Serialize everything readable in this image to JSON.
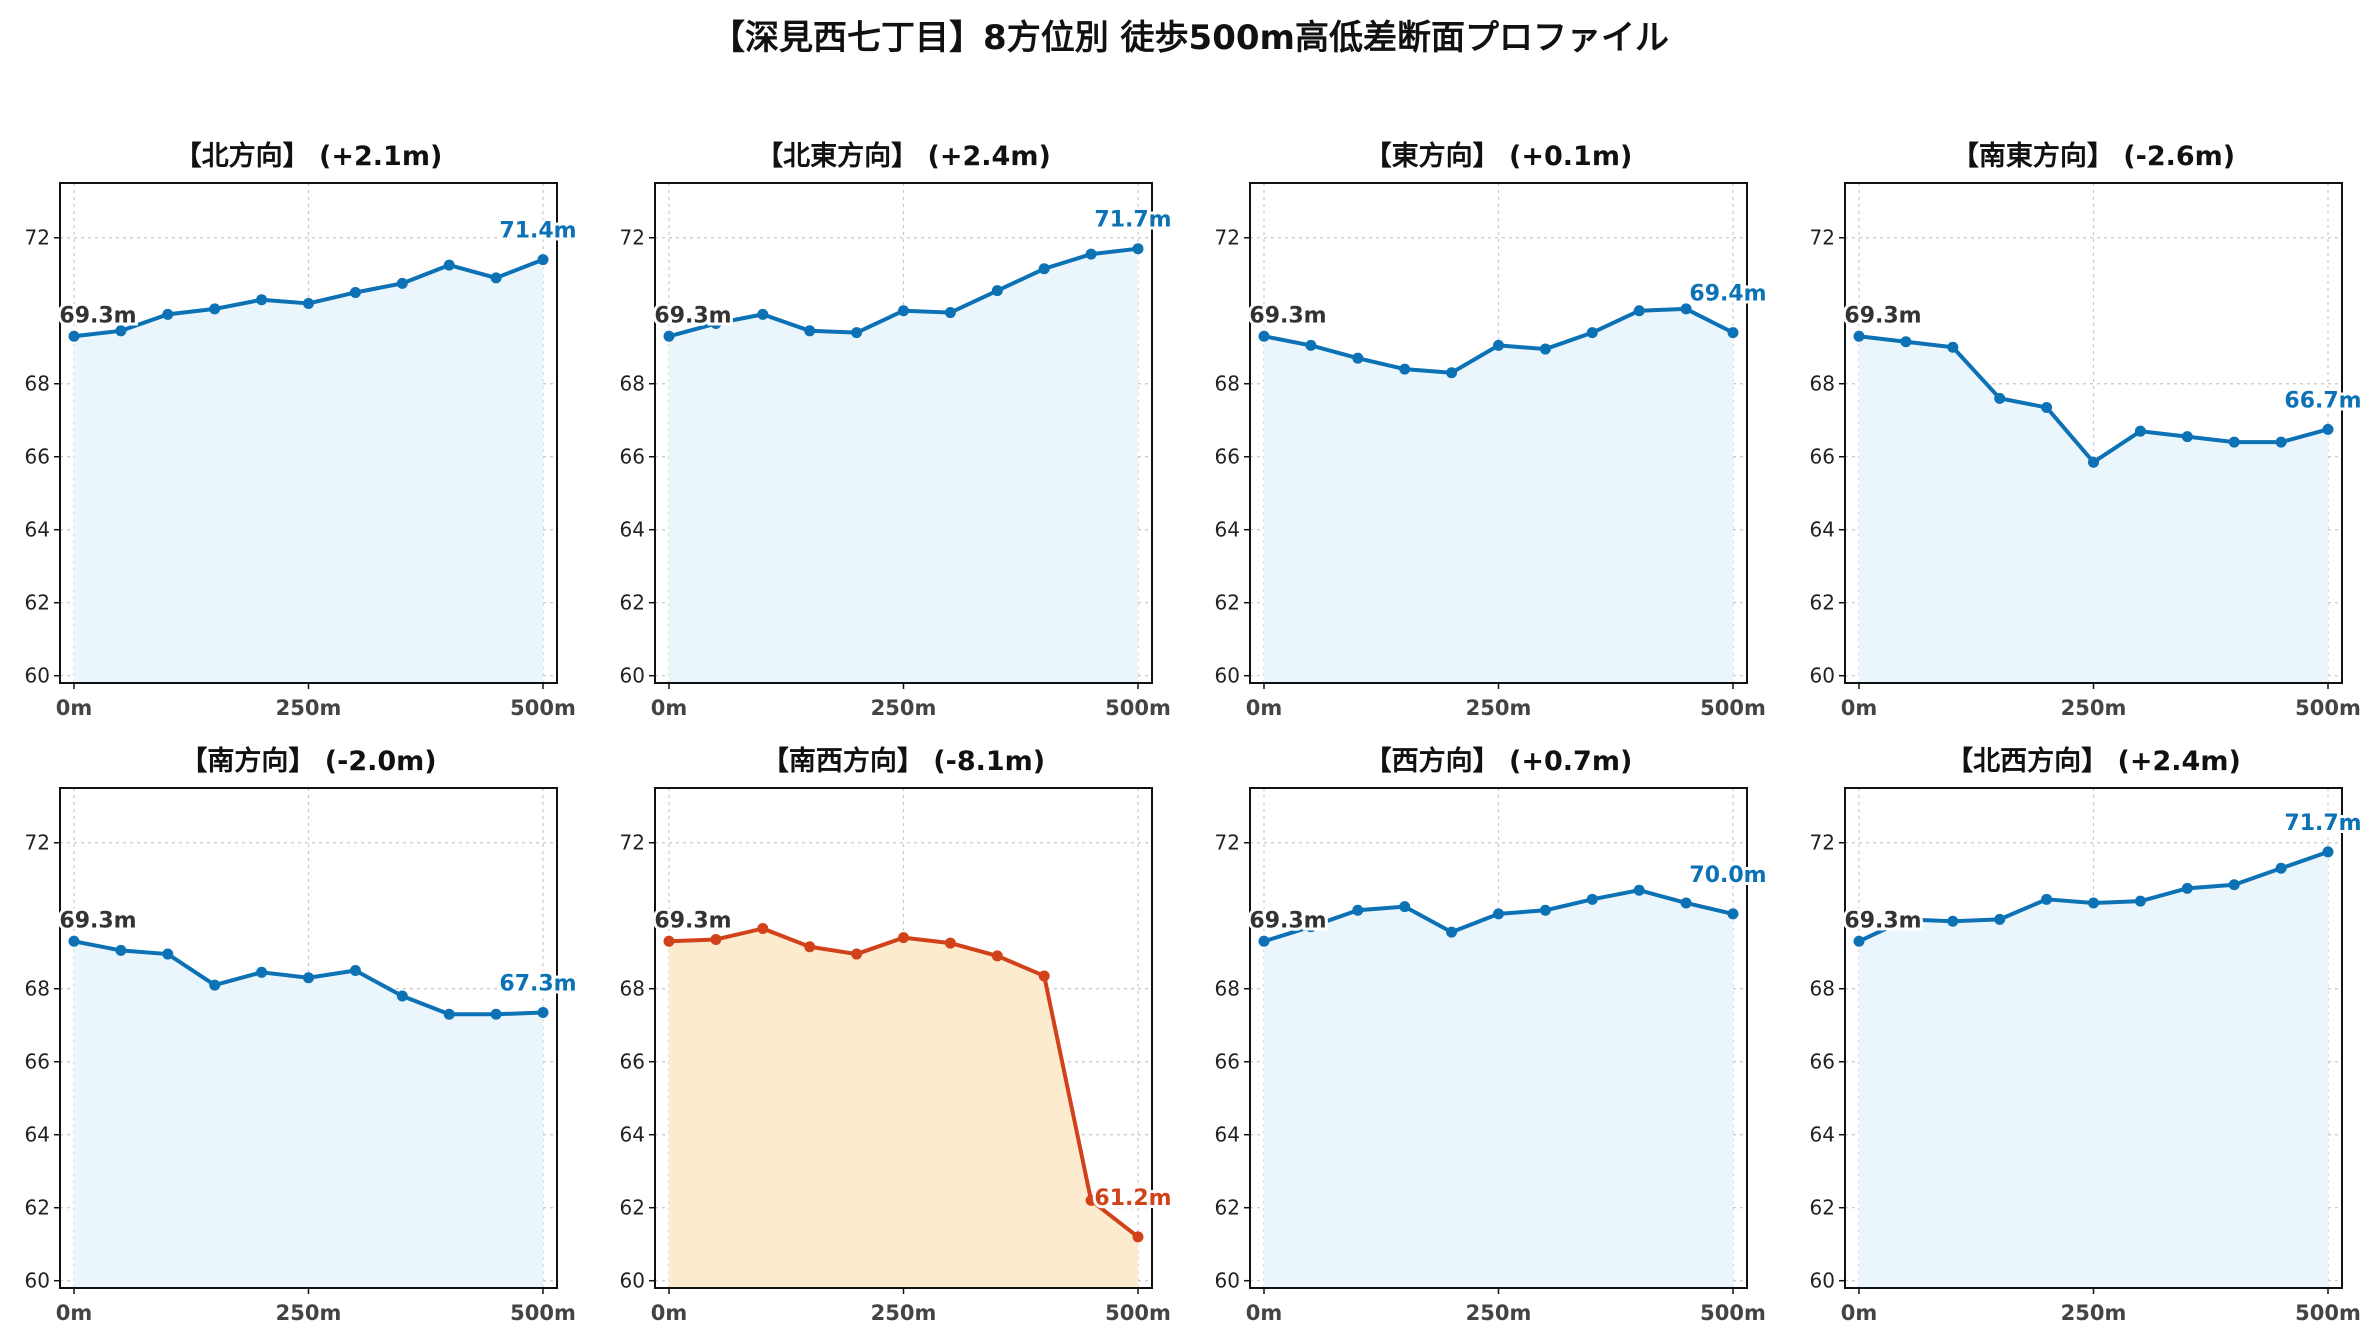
{
  "title": "【深見西七丁目】8方位別 徒歩500m高低差断面プロファイル",
  "colors": {
    "normal_line": "#0c72b5",
    "normal_fill": "#eaf6fb",
    "alert_line": "#d2421a",
    "alert_fill": "#fdebd0",
    "start_label": "#333333"
  },
  "chart_data": [
    {
      "type": "area",
      "title": "【北方向】 (+2.1m)",
      "x": [
        0,
        50,
        100,
        150,
        200,
        250,
        300,
        350,
        400,
        450,
        500
      ],
      "y": [
        69.3,
        69.45,
        69.9,
        70.05,
        70.3,
        70.2,
        70.5,
        70.75,
        71.25,
        70.9,
        71.4
      ],
      "start_label": "69.3m",
      "end_label": "71.4m",
      "ylim": [
        59.8,
        73.5
      ],
      "yticks": [
        60,
        62,
        64,
        66,
        68,
        72
      ],
      "xticks": [
        "0m",
        "250m",
        "500m"
      ],
      "highlight": false,
      "grid": true
    },
    {
      "type": "area",
      "title": "【北東方向】 (+2.4m)",
      "x": [
        0,
        50,
        100,
        150,
        200,
        250,
        300,
        350,
        400,
        450,
        500
      ],
      "y": [
        69.3,
        69.65,
        69.9,
        69.45,
        69.4,
        70.0,
        69.95,
        70.55,
        71.15,
        71.55,
        71.7
      ],
      "start_label": "69.3m",
      "end_label": "71.7m",
      "ylim": [
        59.8,
        73.5
      ],
      "yticks": [
        60,
        62,
        64,
        66,
        68,
        72
      ],
      "xticks": [
        "0m",
        "250m",
        "500m"
      ],
      "highlight": false,
      "grid": true
    },
    {
      "type": "area",
      "title": "【東方向】 (+0.1m)",
      "x": [
        0,
        50,
        100,
        150,
        200,
        250,
        300,
        350,
        400,
        450,
        500
      ],
      "y": [
        69.3,
        69.05,
        68.7,
        68.4,
        68.3,
        69.05,
        68.95,
        69.4,
        70.0,
        70.05,
        69.4
      ],
      "start_label": "69.3m",
      "end_label": "69.4m",
      "ylim": [
        59.8,
        73.5
      ],
      "yticks": [
        60,
        62,
        64,
        66,
        68,
        72
      ],
      "xticks": [
        "0m",
        "250m",
        "500m"
      ],
      "highlight": false,
      "grid": true
    },
    {
      "type": "area",
      "title": "【南東方向】 (-2.6m)",
      "x": [
        0,
        50,
        100,
        150,
        200,
        250,
        300,
        350,
        400,
        450,
        500
      ],
      "y": [
        69.3,
        69.15,
        69.0,
        67.6,
        67.35,
        65.85,
        66.7,
        66.55,
        66.4,
        66.4,
        66.75
      ],
      "start_label": "69.3m",
      "end_label": "66.7m",
      "ylim": [
        59.8,
        73.5
      ],
      "yticks": [
        60,
        62,
        64,
        66,
        68,
        72
      ],
      "xticks": [
        "0m",
        "250m",
        "500m"
      ],
      "highlight": false,
      "grid": true
    },
    {
      "type": "area",
      "title": "【南方向】 (-2.0m)",
      "x": [
        0,
        50,
        100,
        150,
        200,
        250,
        300,
        350,
        400,
        450,
        500
      ],
      "y": [
        69.3,
        69.05,
        68.95,
        68.1,
        68.45,
        68.3,
        68.5,
        67.8,
        67.3,
        67.3,
        67.35
      ],
      "start_label": "69.3m",
      "end_label": "67.3m",
      "ylim": [
        59.8,
        73.5
      ],
      "yticks": [
        60,
        62,
        64,
        66,
        68,
        72
      ],
      "xticks": [
        "0m",
        "250m",
        "500m"
      ],
      "highlight": false,
      "grid": true
    },
    {
      "type": "area",
      "title": "【南西方向】 (-8.1m)",
      "x": [
        0,
        50,
        100,
        150,
        200,
        250,
        300,
        350,
        400,
        450,
        500
      ],
      "y": [
        69.3,
        69.35,
        69.65,
        69.15,
        68.95,
        69.4,
        69.25,
        68.9,
        68.35,
        62.2,
        61.2
      ],
      "start_label": "69.3m",
      "end_label": "61.2m",
      "ylim": [
        59.8,
        73.5
      ],
      "yticks": [
        60,
        62,
        64,
        66,
        68,
        72
      ],
      "xticks": [
        "0m",
        "250m",
        "500m"
      ],
      "highlight": true,
      "grid": true
    },
    {
      "type": "area",
      "title": "【西方向】 (+0.7m)",
      "x": [
        0,
        50,
        100,
        150,
        200,
        250,
        300,
        350,
        400,
        450,
        500
      ],
      "y": [
        69.3,
        69.7,
        70.15,
        70.25,
        69.55,
        70.05,
        70.15,
        70.45,
        70.7,
        70.35,
        70.05
      ],
      "start_label": "69.3m",
      "end_label": "70.0m",
      "ylim": [
        59.8,
        73.5
      ],
      "yticks": [
        60,
        62,
        64,
        66,
        68,
        72
      ],
      "xticks": [
        "0m",
        "250m",
        "500m"
      ],
      "highlight": false,
      "grid": true
    },
    {
      "type": "area",
      "title": "【北西方向】 (+2.4m)",
      "x": [
        0,
        50,
        100,
        150,
        200,
        250,
        300,
        350,
        400,
        450,
        500
      ],
      "y": [
        69.3,
        69.9,
        69.85,
        69.9,
        70.45,
        70.35,
        70.4,
        70.75,
        70.85,
        71.3,
        71.75
      ],
      "start_label": "69.3m",
      "end_label": "71.7m",
      "ylim": [
        59.8,
        73.5
      ],
      "yticks": [
        60,
        62,
        64,
        66,
        68,
        72
      ],
      "xticks": [
        "0m",
        "250m",
        "500m"
      ],
      "highlight": false,
      "grid": true
    }
  ]
}
